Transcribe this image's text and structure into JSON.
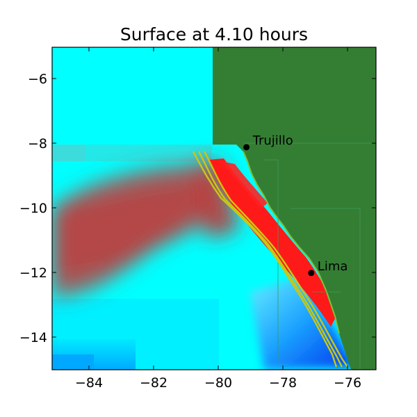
{
  "title": "Surface at 4.10 hours",
  "x_ticks": [
    "−84",
    "−82",
    "−80",
    "−78",
    "−76"
  ],
  "y_ticks": [
    "−6",
    "−8",
    "−10",
    "−12",
    "−14"
  ],
  "cities": [
    {
      "name": "Trujillo",
      "lon": -79.0,
      "lat": -8.1
    },
    {
      "name": "Lima",
      "lon": -77.0,
      "lat": -12.0
    }
  ],
  "colors": {
    "land": "#347e34",
    "sea": "#00ffff",
    "deep_blue": "#0055ff",
    "wave_red": "#ff1a1a",
    "contour": "#c8c814"
  },
  "chart_data": {
    "type": "heatmap",
    "title": "Surface at 4.10 hours",
    "xlabel": "",
    "ylabel": "",
    "xlim": [
      -85,
      -75
    ],
    "ylim": [
      -15,
      -5
    ]
  }
}
